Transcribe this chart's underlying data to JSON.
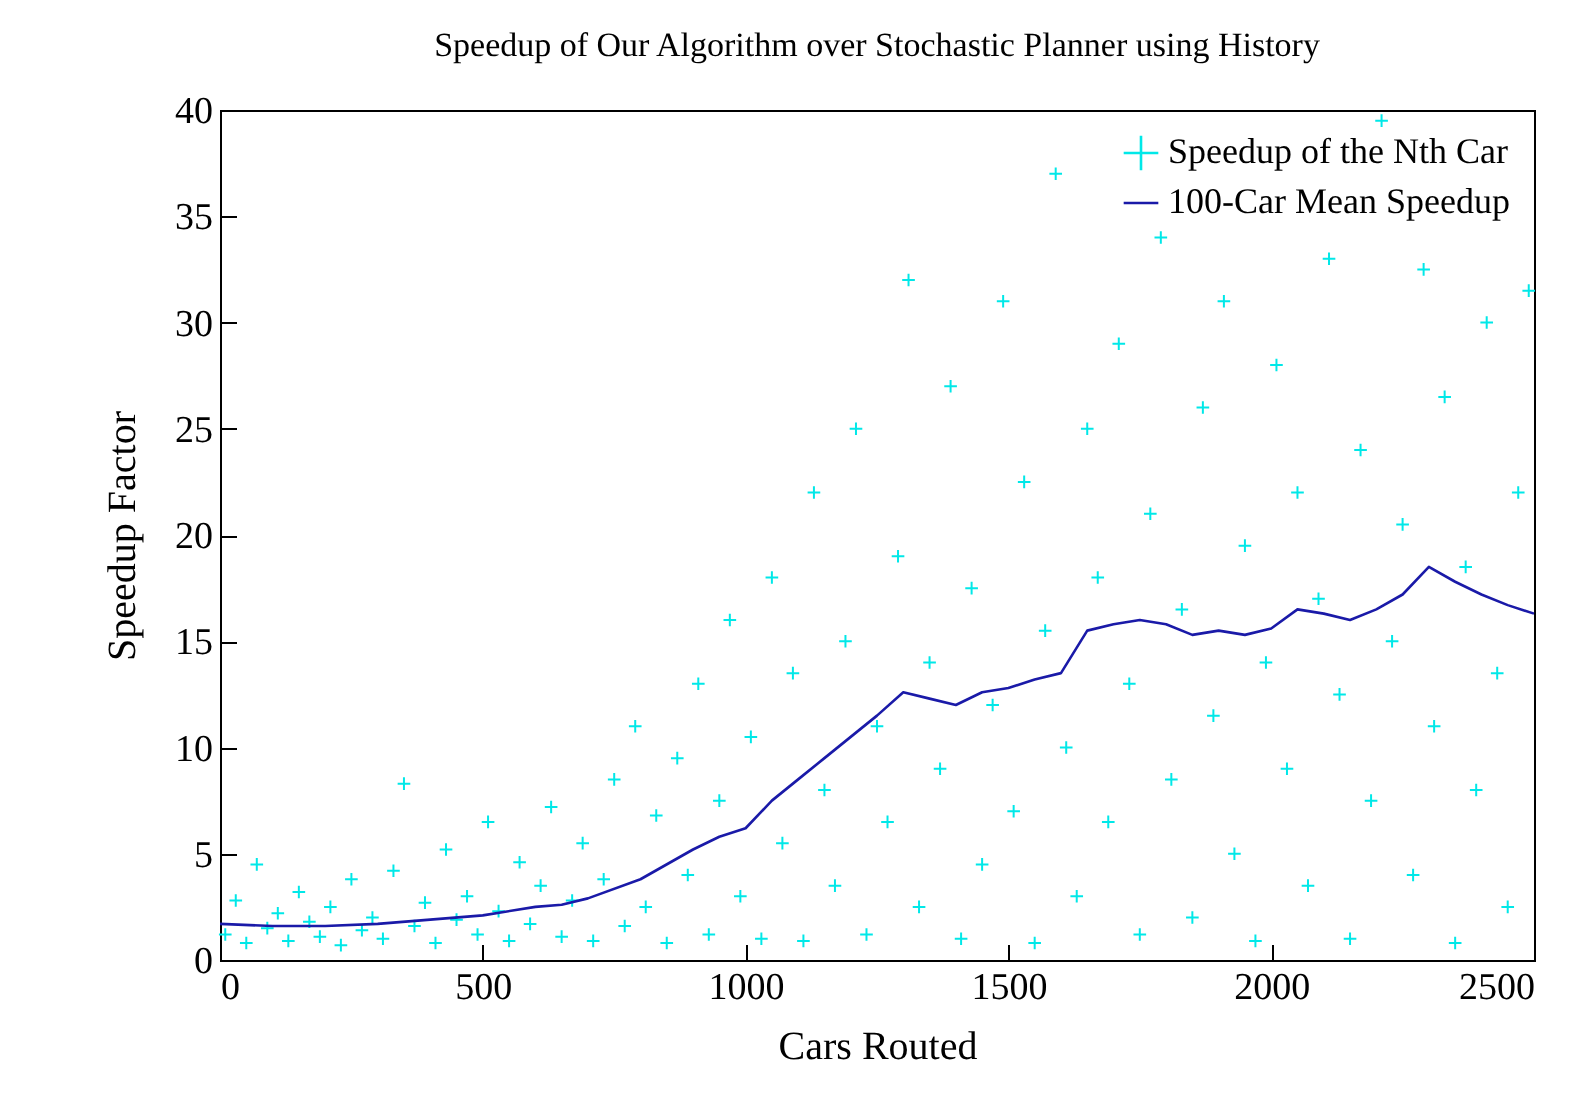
{
  "chart_data": {
    "type": "scatter",
    "title": "Speedup of Our Algorithm over Stochastic Planner using History",
    "xlabel": "Cars Routed",
    "ylabel": "Speedup Factor",
    "xlim": [
      0,
      2500
    ],
    "xticks": [
      0,
      500,
      1000,
      1500,
      2000,
      2500
    ],
    "ylim": [
      0,
      40
    ],
    "yticks": [
      0,
      5,
      10,
      15,
      20,
      25,
      30,
      35,
      40
    ],
    "legend": "top right",
    "series": [
      {
        "name": "Speedup of the Nth Car",
        "marker": "cross",
        "color": "#00e8e8",
        "x": [
          10,
          30,
          50,
          70,
          90,
          110,
          130,
          150,
          170,
          190,
          210,
          230,
          250,
          270,
          290,
          310,
          330,
          350,
          370,
          390,
          410,
          430,
          450,
          470,
          490,
          510,
          530,
          550,
          570,
          590,
          610,
          630,
          650,
          670,
          690,
          710,
          730,
          750,
          770,
          790,
          810,
          830,
          850,
          870,
          890,
          910,
          930,
          950,
          970,
          990,
          1010,
          1030,
          1050,
          1070,
          1090,
          1110,
          1130,
          1150,
          1170,
          1190,
          1210,
          1230,
          1250,
          1270,
          1290,
          1310,
          1330,
          1350,
          1370,
          1390,
          1410,
          1430,
          1450,
          1470,
          1490,
          1510,
          1530,
          1550,
          1570,
          1590,
          1610,
          1630,
          1650,
          1670,
          1690,
          1710,
          1730,
          1750,
          1770,
          1790,
          1810,
          1830,
          1850,
          1870,
          1890,
          1910,
          1930,
          1950,
          1970,
          1990,
          2010,
          2030,
          2050,
          2070,
          2090,
          2110,
          2130,
          2150,
          2170,
          2190,
          2210,
          2230,
          2250,
          2270,
          2290,
          2310,
          2330,
          2350,
          2370,
          2390,
          2410,
          2430,
          2450,
          2470,
          2490
        ],
        "values": [
          1.2,
          2.8,
          0.8,
          4.5,
          1.5,
          2.2,
          0.9,
          3.2,
          1.8,
          1.1,
          2.5,
          0.7,
          3.8,
          1.4,
          2.0,
          1.0,
          4.2,
          8.3,
          1.6,
          2.7,
          0.8,
          5.2,
          1.9,
          3.0,
          1.2,
          6.5,
          2.3,
          0.9,
          4.6,
          1.7,
          3.5,
          7.2,
          1.1,
          2.8,
          5.5,
          0.9,
          3.8,
          8.5,
          1.6,
          11.0,
          2.5,
          6.8,
          0.8,
          9.5,
          4.0,
          13.0,
          1.2,
          7.5,
          16.0,
          3.0,
          10.5,
          1.0,
          18.0,
          5.5,
          13.5,
          0.9,
          22.0,
          8.0,
          3.5,
          15.0,
          25.0,
          1.2,
          11.0,
          6.5,
          19.0,
          32.0,
          2.5,
          14.0,
          9.0,
          27.0,
          1.0,
          17.5,
          4.5,
          12.0,
          31.0,
          7.0,
          22.5,
          0.8,
          15.5,
          37.0,
          10.0,
          3.0,
          25.0,
          18.0,
          6.5,
          29.0,
          13.0,
          1.2,
          21.0,
          34.0,
          8.5,
          16.5,
          2.0,
          26.0,
          11.5,
          31.0,
          5.0,
          19.5,
          0.9,
          14.0,
          28.0,
          9.0,
          22.0,
          3.5,
          17.0,
          33.0,
          12.5,
          1.0,
          24.0,
          7.5,
          39.5,
          15.0,
          20.5,
          4.0,
          32.5,
          11.0,
          26.5,
          0.8,
          18.5,
          8.0,
          30.0,
          13.5,
          2.5,
          22.0,
          31.5
        ]
      },
      {
        "name": "100-Car Mean Speedup",
        "type": "line",
        "color": "#1a1aa8",
        "x": [
          0,
          100,
          200,
          300,
          400,
          500,
          600,
          650,
          700,
          800,
          900,
          950,
          1000,
          1050,
          1100,
          1150,
          1200,
          1250,
          1300,
          1350,
          1400,
          1450,
          1500,
          1550,
          1600,
          1650,
          1700,
          1750,
          1800,
          1850,
          1900,
          1950,
          2000,
          2050,
          2100,
          2150,
          2200,
          2250,
          2300,
          2350,
          2400,
          2450,
          2500
        ],
        "values": [
          1.7,
          1.6,
          1.6,
          1.7,
          1.9,
          2.1,
          2.5,
          2.6,
          2.9,
          3.8,
          5.2,
          5.8,
          6.2,
          7.5,
          8.5,
          9.5,
          10.5,
          11.5,
          12.6,
          12.3,
          12.0,
          12.6,
          12.8,
          13.2,
          13.5,
          15.5,
          15.8,
          16.0,
          15.8,
          15.3,
          15.5,
          15.3,
          15.6,
          16.5,
          16.3,
          16.0,
          16.5,
          17.2,
          18.5,
          17.8,
          17.2,
          16.7,
          16.3
        ]
      }
    ]
  }
}
